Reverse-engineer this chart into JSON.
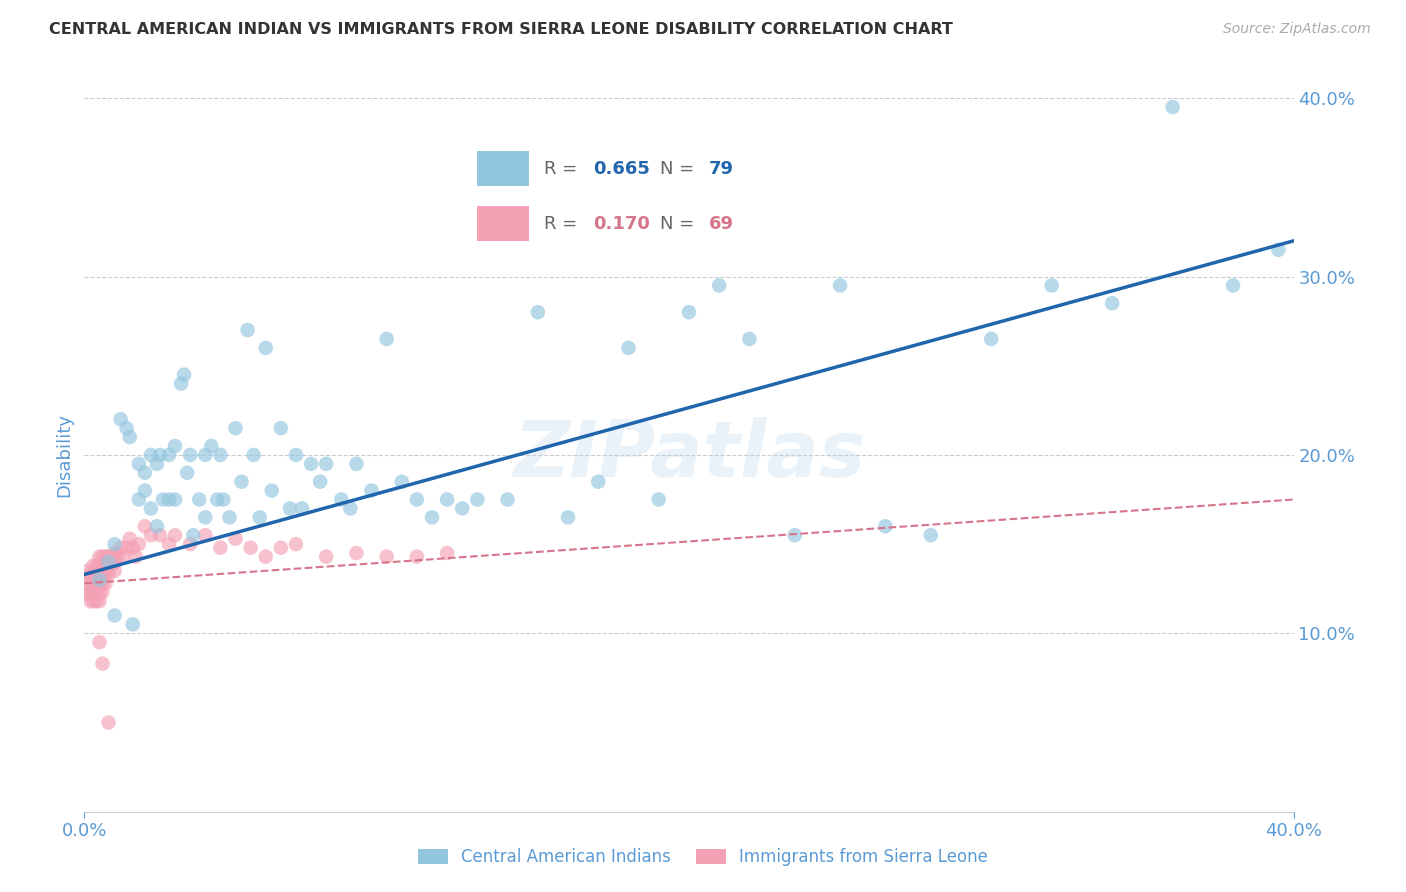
{
  "title": "CENTRAL AMERICAN INDIAN VS IMMIGRANTS FROM SIERRA LEONE DISABILITY CORRELATION CHART",
  "source": "Source: ZipAtlas.com",
  "ylabel": "Disability",
  "xlim": [
    0.0,
    0.4
  ],
  "ylim": [
    0.0,
    0.4
  ],
  "yticks": [
    0.0,
    0.1,
    0.2,
    0.3,
    0.4
  ],
  "ytick_labels": [
    "",
    "10.0%",
    "20.0%",
    "30.0%",
    "40.0%"
  ],
  "watermark": "ZIPatlas",
  "blue_color": "#92c5de",
  "pink_color": "#f4a0b5",
  "line_blue": "#2166ac",
  "line_pink": "#d6758a",
  "axis_color": "#5b9bd5",
  "blue_scatter_x": [
    0.005,
    0.008,
    0.01,
    0.01,
    0.012,
    0.014,
    0.015,
    0.016,
    0.018,
    0.018,
    0.02,
    0.02,
    0.022,
    0.022,
    0.024,
    0.024,
    0.025,
    0.026,
    0.028,
    0.028,
    0.03,
    0.03,
    0.032,
    0.033,
    0.034,
    0.035,
    0.036,
    0.038,
    0.04,
    0.04,
    0.042,
    0.044,
    0.045,
    0.046,
    0.048,
    0.05,
    0.052,
    0.054,
    0.056,
    0.058,
    0.06,
    0.062,
    0.065,
    0.068,
    0.07,
    0.072,
    0.075,
    0.078,
    0.08,
    0.085,
    0.088,
    0.09,
    0.095,
    0.1,
    0.105,
    0.11,
    0.115,
    0.12,
    0.125,
    0.13,
    0.14,
    0.15,
    0.16,
    0.17,
    0.18,
    0.19,
    0.2,
    0.21,
    0.22,
    0.235,
    0.25,
    0.265,
    0.28,
    0.3,
    0.32,
    0.34,
    0.36,
    0.38,
    0.395
  ],
  "blue_scatter_y": [
    0.13,
    0.14,
    0.15,
    0.11,
    0.22,
    0.215,
    0.21,
    0.105,
    0.195,
    0.175,
    0.19,
    0.18,
    0.2,
    0.17,
    0.195,
    0.16,
    0.2,
    0.175,
    0.2,
    0.175,
    0.205,
    0.175,
    0.24,
    0.245,
    0.19,
    0.2,
    0.155,
    0.175,
    0.2,
    0.165,
    0.205,
    0.175,
    0.2,
    0.175,
    0.165,
    0.215,
    0.185,
    0.27,
    0.2,
    0.165,
    0.26,
    0.18,
    0.215,
    0.17,
    0.2,
    0.17,
    0.195,
    0.185,
    0.195,
    0.175,
    0.17,
    0.195,
    0.18,
    0.265,
    0.185,
    0.175,
    0.165,
    0.175,
    0.17,
    0.175,
    0.175,
    0.28,
    0.165,
    0.185,
    0.26,
    0.175,
    0.28,
    0.295,
    0.265,
    0.155,
    0.295,
    0.16,
    0.155,
    0.265,
    0.295,
    0.285,
    0.395,
    0.295,
    0.315
  ],
  "pink_scatter_x": [
    0.001,
    0.001,
    0.001,
    0.002,
    0.002,
    0.002,
    0.002,
    0.003,
    0.003,
    0.003,
    0.003,
    0.003,
    0.004,
    0.004,
    0.004,
    0.004,
    0.004,
    0.005,
    0.005,
    0.005,
    0.005,
    0.005,
    0.005,
    0.006,
    0.006,
    0.006,
    0.006,
    0.006,
    0.007,
    0.007,
    0.007,
    0.007,
    0.008,
    0.008,
    0.008,
    0.009,
    0.009,
    0.01,
    0.01,
    0.01,
    0.011,
    0.012,
    0.013,
    0.014,
    0.015,
    0.016,
    0.017,
    0.018,
    0.02,
    0.022,
    0.025,
    0.028,
    0.03,
    0.035,
    0.04,
    0.045,
    0.05,
    0.055,
    0.06,
    0.065,
    0.07,
    0.08,
    0.09,
    0.1,
    0.11,
    0.12,
    0.005,
    0.006,
    0.008
  ],
  "pink_scatter_y": [
    0.135,
    0.128,
    0.122,
    0.133,
    0.128,
    0.123,
    0.118,
    0.138,
    0.133,
    0.128,
    0.123,
    0.118,
    0.138,
    0.133,
    0.128,
    0.123,
    0.118,
    0.143,
    0.138,
    0.133,
    0.128,
    0.123,
    0.118,
    0.143,
    0.138,
    0.133,
    0.128,
    0.123,
    0.143,
    0.138,
    0.133,
    0.128,
    0.143,
    0.138,
    0.133,
    0.143,
    0.138,
    0.145,
    0.14,
    0.135,
    0.143,
    0.148,
    0.143,
    0.148,
    0.153,
    0.148,
    0.143,
    0.15,
    0.16,
    0.155,
    0.155,
    0.15,
    0.155,
    0.15,
    0.155,
    0.148,
    0.153,
    0.148,
    0.143,
    0.148,
    0.15,
    0.143,
    0.145,
    0.143,
    0.143,
    0.145,
    0.095,
    0.083,
    0.05
  ],
  "blue_line_x0": 0.0,
  "blue_line_x1": 0.4,
  "blue_line_y0": 0.133,
  "blue_line_y1": 0.32,
  "pink_line_x0": 0.0,
  "pink_line_x1": 0.4,
  "pink_line_y0": 0.128,
  "pink_line_y1": 0.175
}
